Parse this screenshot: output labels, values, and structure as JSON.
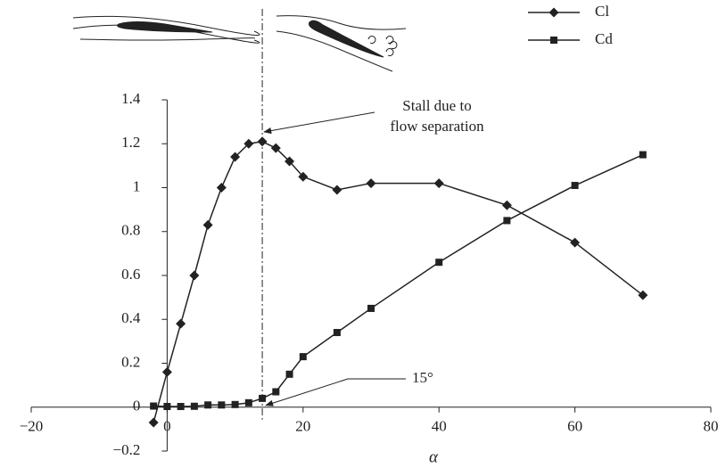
{
  "chart_data": {
    "type": "line",
    "x_label": "α",
    "x": [
      -2,
      0,
      2,
      4,
      6,
      8,
      10,
      12,
      14,
      16,
      18,
      20,
      25,
      30,
      40,
      50,
      60,
      70
    ],
    "series": [
      {
        "name": "Cl",
        "color": "#222222",
        "marker": "diamond",
        "values": [
          -0.07,
          0.16,
          0.38,
          0.6,
          0.83,
          1.0,
          1.14,
          1.2,
          1.21,
          1.18,
          1.12,
          1.05,
          0.99,
          1.02,
          1.02,
          0.92,
          0.75,
          0.51
        ]
      },
      {
        "name": "Cd",
        "color": "#222222",
        "marker": "square",
        "values": [
          0.005,
          0.003,
          0.003,
          0.004,
          0.01,
          0.01,
          0.012,
          0.02,
          0.04,
          0.07,
          0.15,
          0.23,
          0.34,
          0.45,
          0.66,
          0.85,
          1.01,
          1.15
        ]
      }
    ],
    "xlim": [
      -20,
      80
    ],
    "xticks": [
      {
        "value": -20,
        "label": "−20"
      },
      0,
      20,
      40,
      60,
      80
    ],
    "ylim": [
      -0.2,
      1.4
    ],
    "yticks": [
      {
        "value": -0.2,
        "label": "−0.2"
      },
      0,
      0.2,
      0.4,
      0.6,
      0.8,
      1,
      1.2,
      1.4
    ],
    "legend": "top-right",
    "annotations": [
      {
        "lines": [
          "Stall due to",
          "flow separation"
        ]
      },
      {
        "lines": [
          "15°"
        ]
      }
    ]
  }
}
